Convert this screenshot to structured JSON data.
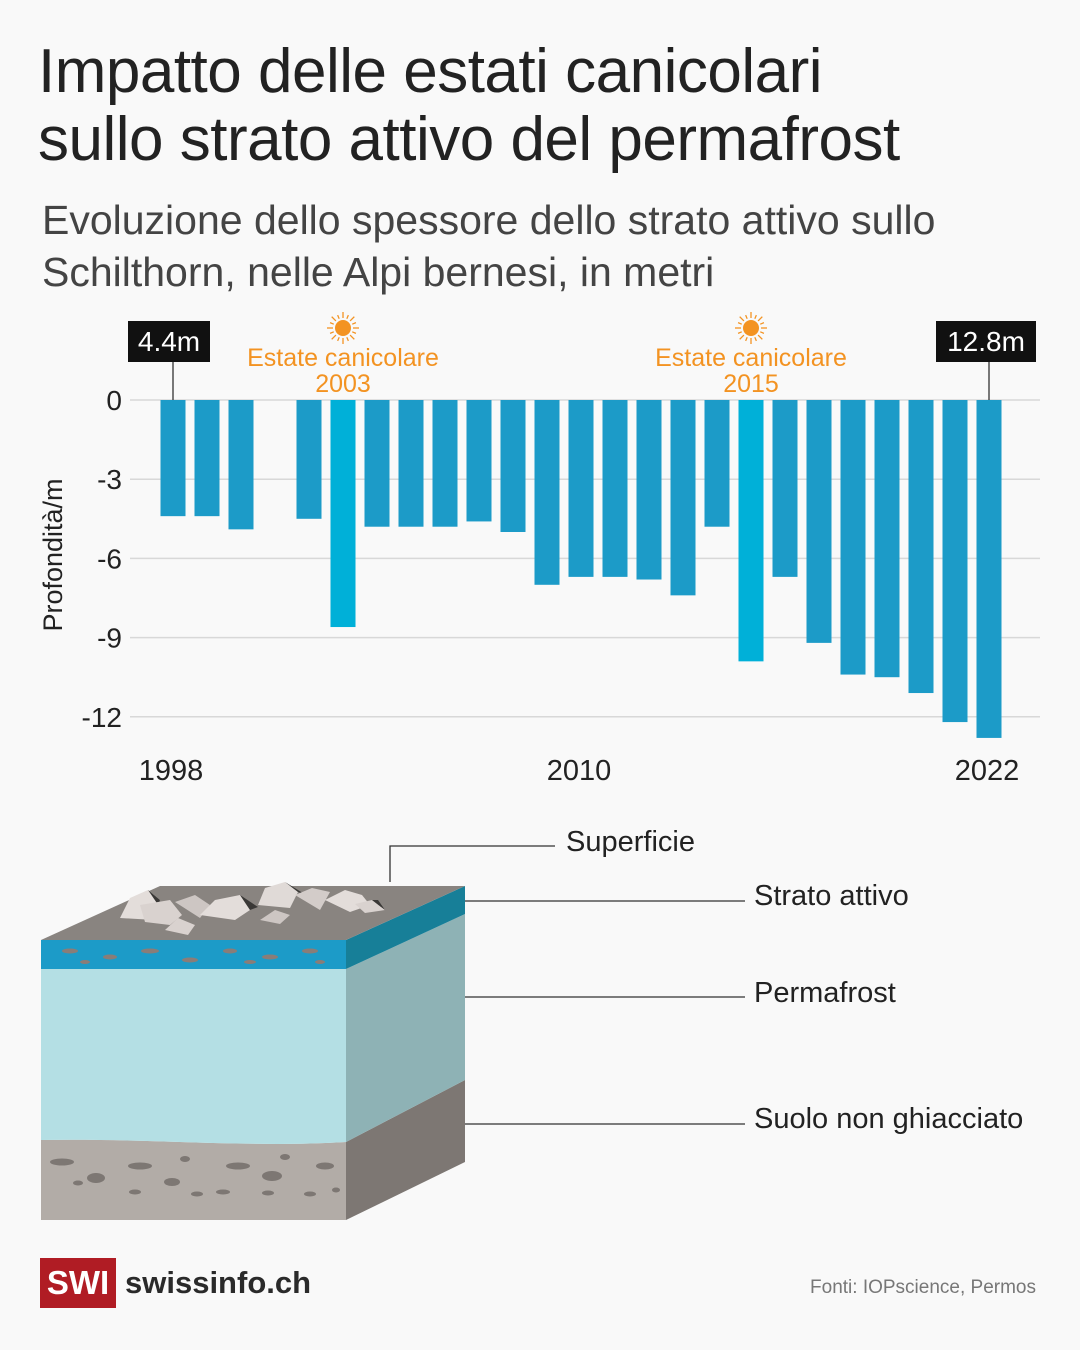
{
  "title_lines": [
    "Impatto delle estati canicolari",
    "sullo strato attivo del permafrost"
  ],
  "subtitle_lines": [
    "Evoluzione dello spessore dello strato attivo sullo",
    "Schilthorn, nelle Alpi bernesi, in metri"
  ],
  "chart_data": {
    "type": "bar",
    "ylabel": "Profondità/m",
    "ylim": [
      -13,
      0
    ],
    "yticks": [
      0,
      -3,
      -6,
      -9,
      -12
    ],
    "ytick_labels": [
      "0",
      "-3",
      "-6",
      "-9",
      "-12"
    ],
    "xtick_labels": [
      "1998",
      "2010",
      "2022"
    ],
    "grid": true,
    "categories": [
      1998,
      1999,
      2000,
      2001,
      2002,
      2003,
      2004,
      2005,
      2006,
      2007,
      2008,
      2009,
      2010,
      2011,
      2012,
      2013,
      2014,
      2015,
      2016,
      2017,
      2018,
      2019,
      2020,
      2021,
      2022
    ],
    "values": [
      -4.4,
      -4.4,
      -4.9,
      null,
      -4.5,
      -8.6,
      -4.8,
      -4.8,
      -4.8,
      -4.6,
      -5.0,
      -7.0,
      -6.7,
      -6.7,
      -6.8,
      -7.4,
      -4.8,
      -9.9,
      -6.7,
      -9.2,
      -10.4,
      -10.5,
      -11.1,
      -12.2,
      -12.8
    ],
    "highlight_years": [
      2003,
      2015
    ],
    "colors": {
      "bar": "#1c9bc8",
      "highlight": "#00b0d8",
      "annotation": "#f39322"
    },
    "annotations": [
      {
        "year": 1998,
        "text": "4.4m",
        "style": "callout"
      },
      {
        "year": 2022,
        "text": "12.8m",
        "style": "callout"
      },
      {
        "year": 2003,
        "lines": [
          "Estate canicolare",
          "2003"
        ],
        "icon": "sun-icon"
      },
      {
        "year": 2015,
        "lines": [
          "Estate canicolare",
          "2015"
        ],
        "icon": "sun-icon"
      }
    ]
  },
  "illustration": {
    "labels": [
      "Superficie",
      "Strato attivo",
      "Permafrost",
      "Suolo non ghiacciato"
    ]
  },
  "footer": {
    "logo_mark": "SWI",
    "logo_text": "swissinfo.ch",
    "source": "Fonti: IOPscience, Permos"
  }
}
